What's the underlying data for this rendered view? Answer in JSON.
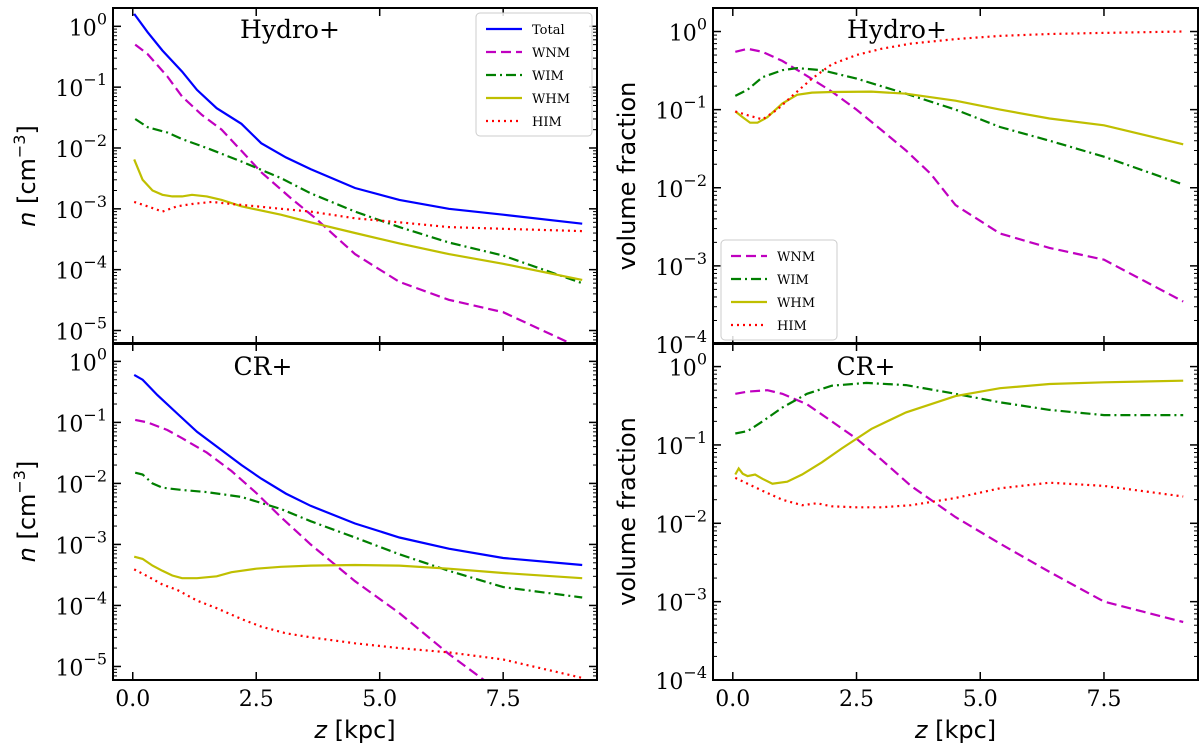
{
  "colors": {
    "Total": "#0000ff",
    "WNM": "#c000c0",
    "WIM": "#007f00",
    "WHM": "#bfbf00",
    "HIM": "#ff0000"
  },
  "xlabel": "z [kpc]",
  "chart_data": [
    {
      "id": "top-left",
      "type": "line",
      "title": "Hydro+",
      "ylabel": "n [cm−3]",
      "yscale": "log",
      "xlim": [
        -0.4,
        9.4
      ],
      "ylim": [
        6e-06,
        2
      ],
      "xticks": [
        "0.0",
        "2.5",
        "5.0",
        "7.5"
      ],
      "yticks": [
        {
          "base": "10",
          "exp": "0"
        },
        {
          "base": "10",
          "exp": "−1"
        },
        {
          "base": "10",
          "exp": "−2"
        },
        {
          "base": "10",
          "exp": "−3"
        },
        {
          "base": "10",
          "exp": "−4"
        },
        {
          "base": "10",
          "exp": "−5"
        }
      ],
      "legend": "upper right",
      "series": [
        {
          "name": "Total",
          "style": "solid",
          "x": [
            0.03,
            0.3,
            0.6,
            1.0,
            1.3,
            1.7,
            2.2,
            2.6,
            3.1,
            3.6,
            4.5,
            5.4,
            6.4,
            7.5,
            9.1
          ],
          "y": [
            1.6,
            0.8,
            0.4,
            0.18,
            0.09,
            0.045,
            0.025,
            0.012,
            0.007,
            0.0045,
            0.0022,
            0.0014,
            0.001,
            0.0008,
            0.00057
          ]
        },
        {
          "name": "WNM",
          "style": "dashed",
          "x": [
            0.05,
            0.3,
            0.7,
            1.0,
            1.4,
            1.8,
            2.2,
            2.6,
            3.2,
            3.7,
            4.5,
            5.4,
            6.4,
            7.5,
            9.1
          ],
          "y": [
            0.5,
            0.35,
            0.15,
            0.07,
            0.035,
            0.02,
            0.009,
            0.004,
            0.0015,
            0.0007,
            0.00018,
            6.3e-05,
            3.2e-05,
            2e-05,
            5e-06
          ]
        },
        {
          "name": "WIM",
          "style": "dashdot",
          "x": [
            0.05,
            0.3,
            0.7,
            1.0,
            1.5,
            2.2,
            3.0,
            3.6,
            4.5,
            5.4,
            6.4,
            7.5,
            9.1
          ],
          "y": [
            0.03,
            0.022,
            0.018,
            0.014,
            0.01,
            0.006,
            0.0032,
            0.0018,
            0.0009,
            0.0005,
            0.00028,
            0.00017,
            6e-05
          ]
        },
        {
          "name": "WHM",
          "style": "solid",
          "x": [
            0.03,
            0.2,
            0.4,
            0.6,
            0.8,
            1.0,
            1.2,
            1.5,
            1.8,
            2.2,
            3.0,
            3.6,
            4.5,
            5.4,
            6.4,
            7.5,
            9.1
          ],
          "y": [
            0.0065,
            0.003,
            0.002,
            0.0017,
            0.0016,
            0.0016,
            0.0017,
            0.0016,
            0.0014,
            0.0011,
            0.0008,
            0.0006,
            0.0004,
            0.00027,
            0.00018,
            0.000125,
            6.8e-05
          ]
        },
        {
          "name": "HIM",
          "style": "dotted",
          "x": [
            0.03,
            0.3,
            0.6,
            0.9,
            1.2,
            1.6,
            2.0,
            2.5,
            3.0,
            3.6,
            4.5,
            5.4,
            6.4,
            7.5,
            9.1
          ],
          "y": [
            0.0013,
            0.0011,
            0.0009,
            0.0011,
            0.0012,
            0.0013,
            0.0012,
            0.0011,
            0.001,
            0.0009,
            0.0007,
            0.0006,
            0.0005,
            0.00047,
            0.00043
          ]
        }
      ]
    },
    {
      "id": "top-right",
      "type": "line",
      "title": "Hydro+",
      "ylabel": "volume fraction",
      "yscale": "log",
      "xlim": [
        -0.4,
        9.4
      ],
      "ylim": [
        0.0001,
        2
      ],
      "xticks": [
        "0.0",
        "2.5",
        "5.0",
        "7.5"
      ],
      "yticks": [
        {
          "base": "10",
          "exp": "0"
        },
        {
          "base": "10",
          "exp": "−1"
        },
        {
          "base": "10",
          "exp": "−2"
        },
        {
          "base": "10",
          "exp": "−3"
        },
        {
          "base": "10",
          "exp": "−4"
        }
      ],
      "legend": "lower left",
      "series": [
        {
          "name": "WNM",
          "style": "dashed",
          "x": [
            0.05,
            0.3,
            0.6,
            1.0,
            1.5,
            2.0,
            2.5,
            3.0,
            3.5,
            4.0,
            4.5,
            5.4,
            6.4,
            7.5,
            9.1
          ],
          "y": [
            0.55,
            0.6,
            0.55,
            0.42,
            0.27,
            0.17,
            0.1,
            0.055,
            0.03,
            0.015,
            0.006,
            0.0026,
            0.0017,
            0.0012,
            0.00035
          ]
        },
        {
          "name": "WIM",
          "style": "dashdot",
          "x": [
            0.05,
            0.3,
            0.6,
            1.0,
            1.3,
            1.8,
            2.5,
            3.5,
            4.5,
            5.4,
            6.4,
            7.5,
            9.1
          ],
          "y": [
            0.15,
            0.18,
            0.26,
            0.32,
            0.34,
            0.32,
            0.25,
            0.16,
            0.1,
            0.06,
            0.04,
            0.025,
            0.011
          ]
        },
        {
          "name": "WHM",
          "style": "solid",
          "x": [
            0.05,
            0.2,
            0.35,
            0.5,
            0.7,
            1.0,
            1.3,
            1.6,
            2.0,
            2.8,
            3.5,
            4.5,
            5.4,
            6.4,
            7.5,
            9.1
          ],
          "y": [
            0.095,
            0.08,
            0.068,
            0.068,
            0.08,
            0.12,
            0.155,
            0.165,
            0.168,
            0.17,
            0.16,
            0.13,
            0.1,
            0.077,
            0.063,
            0.036
          ]
        },
        {
          "name": "HIM",
          "style": "dotted",
          "x": [
            0.05,
            0.3,
            0.6,
            0.9,
            1.2,
            1.6,
            2.0,
            2.5,
            3.0,
            3.6,
            4.5,
            5.4,
            6.4,
            7.5,
            9.1
          ],
          "y": [
            0.095,
            0.085,
            0.075,
            0.1,
            0.15,
            0.25,
            0.38,
            0.5,
            0.6,
            0.7,
            0.8,
            0.88,
            0.93,
            0.96,
            1.0
          ]
        }
      ]
    },
    {
      "id": "bottom-left",
      "type": "line",
      "title": "CR+",
      "ylabel": "n [cm−3]",
      "yscale": "log",
      "xlim": [
        -0.4,
        9.4
      ],
      "ylim": [
        6e-06,
        2
      ],
      "xticks": [
        "0.0",
        "2.5",
        "5.0",
        "7.5"
      ],
      "yticks": [
        {
          "base": "10",
          "exp": "0"
        },
        {
          "base": "10",
          "exp": "−1"
        },
        {
          "base": "10",
          "exp": "−2"
        },
        {
          "base": "10",
          "exp": "−3"
        },
        {
          "base": "10",
          "exp": "−4"
        },
        {
          "base": "10",
          "exp": "−5"
        }
      ],
      "series": [
        {
          "name": "Total",
          "style": "solid",
          "x": [
            0.03,
            0.2,
            0.5,
            0.9,
            1.3,
            1.8,
            2.2,
            2.6,
            3.1,
            3.6,
            4.5,
            5.4,
            6.4,
            7.5,
            9.1
          ],
          "y": [
            0.6,
            0.5,
            0.28,
            0.14,
            0.07,
            0.035,
            0.02,
            0.012,
            0.0068,
            0.0043,
            0.0022,
            0.0013,
            0.00085,
            0.0006,
            0.00046
          ]
        },
        {
          "name": "WNM",
          "style": "dashed",
          "x": [
            0.05,
            0.3,
            0.7,
            1.0,
            1.5,
            2.0,
            2.5,
            3.0,
            3.6,
            4.5,
            5.4,
            6.4,
            7.5
          ],
          "y": [
            0.11,
            0.1,
            0.075,
            0.055,
            0.032,
            0.016,
            0.007,
            0.0028,
            0.001,
            0.00025,
            7.5e-05,
            1.6e-05,
            3.5e-06
          ]
        },
        {
          "name": "WIM",
          "style": "dashdot",
          "x": [
            0.05,
            0.2,
            0.4,
            0.6,
            1.0,
            1.5,
            2.2,
            3.0,
            3.6,
            4.5,
            5.4,
            6.4,
            7.5,
            9.1
          ],
          "y": [
            0.015,
            0.014,
            0.01,
            0.0085,
            0.0078,
            0.0072,
            0.006,
            0.0038,
            0.0024,
            0.0013,
            0.00069,
            0.00037,
            0.0002,
            0.000135
          ]
        },
        {
          "name": "WHM",
          "style": "solid",
          "x": [
            0.03,
            0.2,
            0.4,
            0.6,
            0.8,
            1.0,
            1.3,
            1.7,
            2.0,
            2.5,
            3.0,
            3.6,
            4.5,
            5.4,
            6.4,
            7.5,
            9.1
          ],
          "y": [
            0.00063,
            0.00058,
            0.00045,
            0.00037,
            0.00031,
            0.00028,
            0.00028,
            0.0003,
            0.00035,
            0.0004,
            0.00043,
            0.00045,
            0.00046,
            0.00045,
            0.0004,
            0.00034,
            0.00028
          ]
        },
        {
          "name": "HIM",
          "style": "dotted",
          "x": [
            0.03,
            0.3,
            0.6,
            0.9,
            1.3,
            1.7,
            2.2,
            2.6,
            3.1,
            3.6,
            4.5,
            5.4,
            6.4,
            7.5,
            9.1
          ],
          "y": [
            0.00039,
            0.0003,
            0.00022,
            0.00018,
            0.00012,
            9e-05,
            6e-05,
            4.5e-05,
            3.5e-05,
            3e-05,
            2.4e-05,
            2e-05,
            1.7e-05,
            1.3e-05,
            6.5e-06
          ]
        }
      ]
    },
    {
      "id": "bottom-right",
      "type": "line",
      "title": "CR+",
      "ylabel": "volume fraction",
      "yscale": "log",
      "xlim": [
        -0.4,
        9.4
      ],
      "ylim": [
        0.0001,
        2
      ],
      "xticks": [
        "0.0",
        "2.5",
        "5.0",
        "7.5"
      ],
      "yticks": [
        {
          "base": "10",
          "exp": "0"
        },
        {
          "base": "10",
          "exp": "−1"
        },
        {
          "base": "10",
          "exp": "−2"
        },
        {
          "base": "10",
          "exp": "−3"
        },
        {
          "base": "10",
          "exp": "−4"
        }
      ],
      "series": [
        {
          "name": "WNM",
          "style": "dashed",
          "x": [
            0.05,
            0.3,
            0.7,
            1.0,
            1.5,
            2.0,
            2.5,
            3.0,
            3.6,
            4.5,
            5.4,
            6.4,
            7.5,
            9.1
          ],
          "y": [
            0.45,
            0.48,
            0.5,
            0.45,
            0.33,
            0.2,
            0.12,
            0.065,
            0.03,
            0.012,
            0.0055,
            0.0024,
            0.001,
            0.00055
          ]
        },
        {
          "name": "WIM",
          "style": "dashdot",
          "x": [
            0.05,
            0.3,
            0.6,
            1.0,
            1.5,
            2.0,
            2.7,
            3.5,
            4.5,
            5.4,
            6.4,
            7.5,
            9.1
          ],
          "y": [
            0.14,
            0.15,
            0.2,
            0.3,
            0.45,
            0.57,
            0.62,
            0.58,
            0.45,
            0.35,
            0.28,
            0.24,
            0.24
          ]
        },
        {
          "name": "WHM",
          "style": "solid",
          "x": [
            0.05,
            0.12,
            0.2,
            0.3,
            0.45,
            0.6,
            0.8,
            1.1,
            1.4,
            1.8,
            2.2,
            2.8,
            3.5,
            4.5,
            5.4,
            6.4,
            7.5,
            9.1
          ],
          "y": [
            0.042,
            0.05,
            0.043,
            0.04,
            0.042,
            0.037,
            0.032,
            0.034,
            0.042,
            0.06,
            0.09,
            0.16,
            0.26,
            0.42,
            0.53,
            0.6,
            0.63,
            0.66
          ]
        },
        {
          "name": "HIM",
          "style": "dotted",
          "x": [
            0.05,
            0.3,
            0.6,
            1.0,
            1.4,
            1.7,
            2.0,
            2.5,
            3.0,
            3.6,
            4.5,
            5.4,
            6.4,
            7.5,
            9.1
          ],
          "y": [
            0.038,
            0.032,
            0.026,
            0.02,
            0.017,
            0.018,
            0.0165,
            0.016,
            0.016,
            0.017,
            0.021,
            0.028,
            0.033,
            0.03,
            0.022
          ]
        }
      ]
    }
  ]
}
